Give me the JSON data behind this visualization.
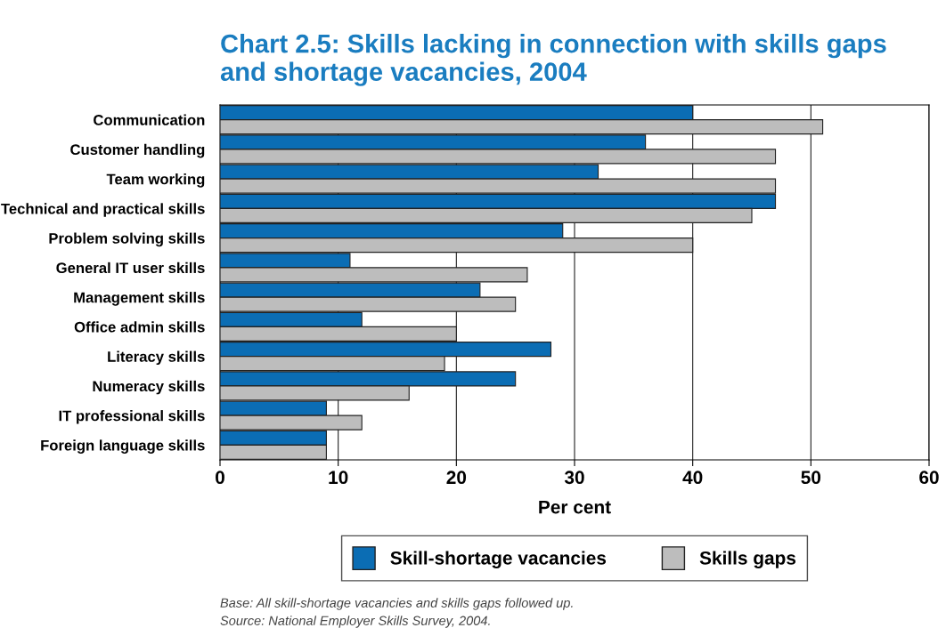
{
  "chart_data": {
    "type": "bar",
    "orientation": "horizontal",
    "title": "Chart 2.5: Skills lacking in connection with skills gaps\nand shortage vacancies, 2004",
    "xlabel": "Per cent",
    "categories": [
      "Communication",
      "Customer handling",
      "Team working",
      "Technical and practical skills",
      "Problem solving skills",
      "General IT user skills",
      "Management skills",
      "Office admin skills",
      "Literacy skills",
      "Numeracy skills",
      "IT professional skills",
      "Foreign language skills"
    ],
    "series": [
      {
        "name": "Skill-shortage vacancies",
        "color": "#0b6db4",
        "values": [
          40,
          36,
          32,
          47,
          29,
          11,
          22,
          12,
          28,
          25,
          9,
          9
        ]
      },
      {
        "name": "Skills gaps",
        "color": "#bdbdbd",
        "values": [
          51,
          47,
          47,
          45,
          40,
          26,
          25,
          20,
          19,
          16,
          12,
          9
        ]
      }
    ],
    "xlim": [
      0,
      60
    ],
    "xticks": [
      0,
      10,
      20,
      30,
      40,
      50,
      60
    ],
    "grid": "x",
    "legend": "bottom",
    "annotations": [
      "Base: All skill-shortage vacancies and skills gaps followed up.",
      "Source: National Employer Skills Survey, 2004."
    ]
  }
}
